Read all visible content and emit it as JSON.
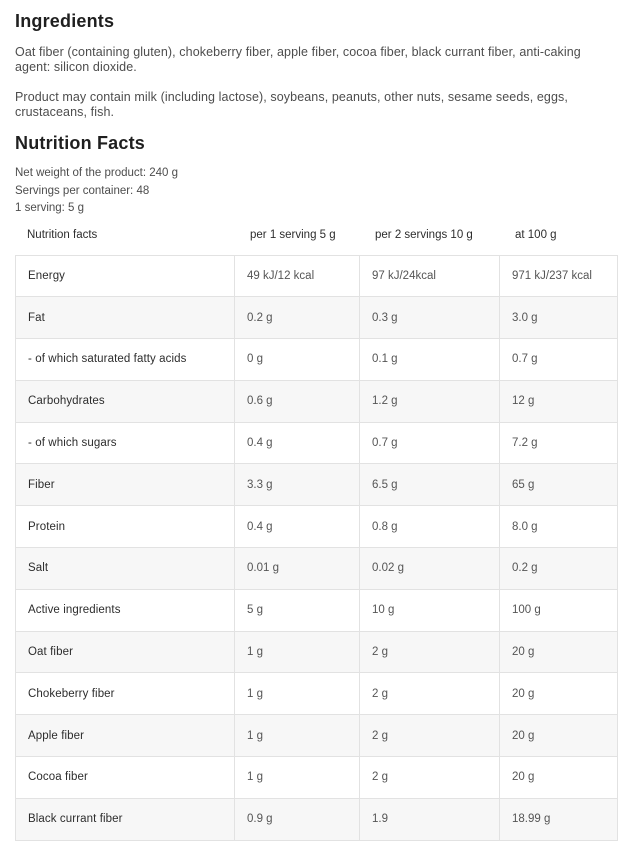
{
  "page": {
    "ingredients_title": "Ingredients",
    "ingredients_text": "Oat fiber (containing gluten), chokeberry fiber, apple fiber, cocoa fiber, black currant fiber, anti-caking agent: silicon dioxide.",
    "allergen_text": "Product may contain milk (including lactose), soybeans, peanuts, other nuts, sesame seeds, eggs, crustaceans, fish.",
    "nutrition_title": "Nutrition Facts",
    "meta": [
      "Net weight of the product: 240 g",
      "Servings per container: 48",
      "1 serving: 5 g"
    ]
  },
  "table": {
    "columns": [
      "Nutrition facts",
      "per 1 serving 5 g",
      "per 2 servings 10 g",
      "at 100 g"
    ],
    "rows": [
      {
        "label": "Energy",
        "v1": "49 kJ/12 kcal",
        "v2": "97 kJ/24kcal",
        "v3": "971 kJ/237 kcal"
      },
      {
        "label": "Fat",
        "v1": "0.2 g",
        "v2": "0.3 g",
        "v3": "3.0 g"
      },
      {
        "label": "- of which saturated fatty acids",
        "v1": "0 g",
        "v2": "0.1 g",
        "v3": "0.7 g"
      },
      {
        "label": "Carbohydrates",
        "v1": "0.6 g",
        "v2": "1.2 g",
        "v3": "12 g"
      },
      {
        "label": "- of which sugars",
        "v1": "0.4 g",
        "v2": "0.7 g",
        "v3": "7.2 g"
      },
      {
        "label": "Fiber",
        "v1": "3.3 g",
        "v2": "6.5 g",
        "v3": "65 g"
      },
      {
        "label": "Protein",
        "v1": "0.4 g",
        "v2": "0.8 g",
        "v3": "8.0 g"
      },
      {
        "label": "Salt",
        "v1": "0.01 g",
        "v2": "0.02 g",
        "v3": "0.2 g"
      },
      {
        "label": "Active ingredients",
        "v1": "5 g",
        "v2": "10 g",
        "v3": "100 g"
      },
      {
        "label": "Oat fiber",
        "v1": "1 g",
        "v2": "2 g",
        "v3": "20 g"
      },
      {
        "label": "Chokeberry fiber",
        "v1": "1 g",
        "v2": "2 g",
        "v3": "20 g"
      },
      {
        "label": "Apple fiber",
        "v1": "1 g",
        "v2": "2 g",
        "v3": "20 g"
      },
      {
        "label": "Cocoa fiber",
        "v1": "1 g",
        "v2": "2 g",
        "v3": "20 g"
      },
      {
        "label": "Black currant fiber",
        "v1": "0.9 g",
        "v2": "1.9",
        "v3": "18.99 g"
      }
    ]
  },
  "colors": {
    "heading": "#1f1f1f",
    "body_text": "#4d4d4d",
    "row_label": "#2d2d2d",
    "row_value": "#555555",
    "table_border": "#e2e2e2",
    "stripe_row_bg": "#f7f7f7",
    "page_bg": "#ffffff"
  }
}
